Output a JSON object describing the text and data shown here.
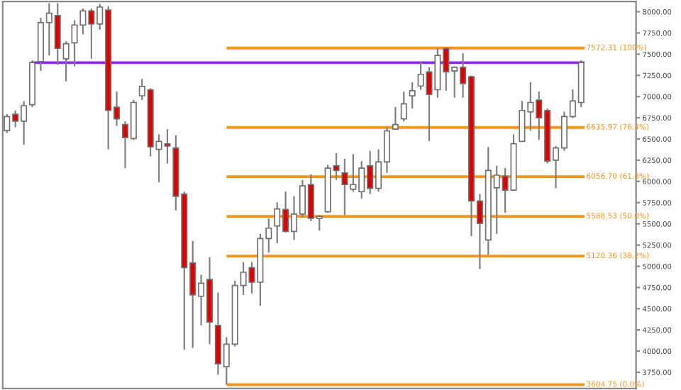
{
  "chart_data": {
    "type": "candlestick",
    "categories": [
      null,
      null,
      null,
      null,
      null,
      null,
      null,
      null,
      null,
      null,
      null,
      null,
      null,
      null,
      null,
      null,
      null,
      null,
      null,
      null,
      null,
      null,
      null,
      null,
      null,
      null,
      null,
      null,
      null,
      null,
      null,
      null,
      null,
      null,
      null,
      null,
      null,
      null,
      null,
      null,
      null,
      null,
      null,
      null,
      null,
      null,
      null,
      null,
      null,
      null,
      null,
      null,
      null,
      null,
      null,
      null,
      null,
      null,
      null,
      null,
      null,
      null,
      null,
      null,
      null,
      null,
      null,
      null,
      null,
      null,
      null,
      null,
      null,
      null,
      null
    ],
    "ohlc": [
      [
        6599,
        6793,
        6572,
        6765
      ],
      [
        6793,
        6837,
        6638,
        6710
      ],
      [
        6710,
        6948,
        6433,
        6893
      ],
      [
        6904,
        7429,
        6876,
        7402
      ],
      [
        7413,
        7927,
        7302,
        7872
      ],
      [
        7872,
        8100,
        7485,
        7983
      ],
      [
        7955,
        8100,
        7374,
        7568
      ],
      [
        7446,
        7651,
        7180,
        7623
      ],
      [
        7634,
        7900,
        7357,
        7844
      ],
      [
        7844,
        8038,
        7734,
        8010
      ],
      [
        8010,
        8038,
        7446,
        7855
      ],
      [
        7855,
        8093,
        7789,
        8055
      ],
      [
        8021,
        8066,
        6378,
        6837
      ],
      [
        6876,
        7059,
        6655,
        6738
      ],
      [
        6671,
        6710,
        6157,
        6516
      ],
      [
        6505,
        6959,
        6489,
        6931
      ],
      [
        7010,
        7208,
        6959,
        7120
      ],
      [
        7081,
        7097,
        6295,
        6406
      ],
      [
        6378,
        6555,
        5991,
        6472
      ],
      [
        6444,
        6616,
        6212,
        6417
      ],
      [
        6395,
        6544,
        5659,
        5825
      ],
      [
        5852,
        5880,
        4016,
        4984
      ],
      [
        5039,
        5299,
        4038,
        4663
      ],
      [
        4647,
        4901,
        4303,
        4801
      ],
      [
        4845,
        5106,
        4082,
        4342
      ],
      [
        4303,
        4690,
        3722,
        3849
      ],
      [
        3816,
        4165,
        3605,
        4082
      ],
      [
        4082,
        4829,
        4054,
        4774
      ],
      [
        4774,
        5050,
        4663,
        4929
      ],
      [
        4984,
        5050,
        4680,
        4812
      ],
      [
        4812,
        5382,
        4536,
        5327
      ],
      [
        5327,
        5565,
        5161,
        5449
      ],
      [
        5476,
        5753,
        5271,
        5676
      ],
      [
        5670,
        5880,
        5399,
        5410
      ],
      [
        5410,
        5825,
        5310,
        5615
      ],
      [
        5615,
        6018,
        5576,
        5947
      ],
      [
        5963,
        6085,
        5532,
        5565
      ],
      [
        5565,
        5603,
        5421,
        5587
      ],
      [
        5642,
        6195,
        5631,
        6157
      ],
      [
        6184,
        6334,
        6018,
        6129
      ],
      [
        6101,
        6268,
        5603,
        5963
      ],
      [
        5908,
        6323,
        5880,
        5963
      ],
      [
        5880,
        6240,
        5797,
        6157
      ],
      [
        6184,
        6361,
        5852,
        5919
      ],
      [
        5919,
        6378,
        5880,
        6229
      ],
      [
        6229,
        6638,
        6101,
        6594
      ],
      [
        6616,
        6876,
        6616,
        6671
      ],
      [
        6738,
        7059,
        6710,
        6915
      ],
      [
        7009,
        7169,
        6859,
        7070
      ],
      [
        7125,
        7413,
        7081,
        7263
      ],
      [
        7291,
        7346,
        6478,
        7025
      ],
      [
        7081,
        7568,
        6987,
        7485
      ],
      [
        7568,
        7572,
        7070,
        7291
      ],
      [
        7302,
        7357,
        6987,
        7346
      ],
      [
        7346,
        7512,
        6987,
        7153
      ],
      [
        7236,
        7247,
        5354,
        5769
      ],
      [
        5769,
        5852,
        4967,
        5504
      ],
      [
        5310,
        6406,
        5133,
        6129
      ],
      [
        5924,
        6184,
        5382,
        6074
      ],
      [
        6063,
        6157,
        5631,
        5897
      ],
      [
        5897,
        6555,
        5897,
        6444
      ],
      [
        6472,
        6948,
        6472,
        6837
      ],
      [
        6820,
        7169,
        6599,
        6931
      ],
      [
        6959,
        7059,
        6489,
        6749
      ],
      [
        6837,
        6859,
        6212,
        6240
      ],
      [
        6251,
        6417,
        5919,
        6395
      ],
      [
        6395,
        6821,
        6361,
        6765
      ],
      [
        6765,
        7086,
        6749,
        6948
      ],
      [
        6931,
        7429,
        6876,
        7402
      ],
      null,
      null,
      null,
      null,
      null,
      null
    ],
    "colors": [
      "#ffffff",
      "#e00000",
      "#ffffff",
      "#ffffff",
      "#ffffff",
      "#ffffff",
      "#e00000",
      "#ffffff",
      "#ffffff",
      "#ffffff",
      "#e00000",
      "#ffffff",
      "#e00000",
      "#e00000",
      "#e00000",
      "#ffffff",
      "#ffffff",
      "#e00000",
      "#ffffff",
      "#e00000",
      "#e00000",
      "#e00000",
      "#e00000",
      "#ffffff",
      "#e00000",
      "#e00000",
      "#ffffff",
      "#ffffff",
      "#ffffff",
      "#e00000",
      "#ffffff",
      "#ffffff",
      "#ffffff",
      "#e00000",
      "#ffffff",
      "#ffffff",
      "#e00000",
      "#ffffff",
      "#ffffff",
      "#e00000",
      "#e00000",
      "#ffffff",
      "#ffffff",
      "#e00000",
      "#ffffff",
      "#ffffff",
      "#ffffff",
      "#ffffff",
      "#ffffff",
      "#ffffff",
      "#e00000",
      "#ffffff",
      "#e00000",
      "#ffffff",
      "#e00000",
      "#e00000",
      "#e00000",
      "#ffffff",
      "#ffffff",
      "#e00000",
      "#ffffff",
      "#ffffff",
      "#ffffff",
      "#e00000",
      "#e00000",
      "#ffffff",
      "#ffffff",
      "#ffffff",
      "#ffffff",
      null,
      null,
      null,
      null,
      null,
      null
    ],
    "ylim": [
      3560,
      8120
    ],
    "yticks": [
      {
        "value": 3750,
        "label": "3750.00"
      },
      {
        "value": 4000,
        "label": "4000.00"
      },
      {
        "value": 4250,
        "label": "4250.00"
      },
      {
        "value": 4500,
        "label": "4500.00"
      },
      {
        "value": 4750,
        "label": "4750.00"
      },
      {
        "value": 5000,
        "label": "5000.00"
      },
      {
        "value": 5250,
        "label": "5250.00"
      },
      {
        "value": 5500,
        "label": "5500.00"
      },
      {
        "value": 5750,
        "label": "5750.00"
      },
      {
        "value": 6000,
        "label": "6000.00"
      },
      {
        "value": 6250,
        "label": "6250.00"
      },
      {
        "value": 6500,
        "label": "6500.00"
      },
      {
        "value": 6750,
        "label": "6750.00"
      },
      {
        "value": 7000,
        "label": "7000.00"
      },
      {
        "value": 7250,
        "label": "7250.00"
      },
      {
        "value": 7500,
        "label": "7500.00"
      },
      {
        "value": 7750,
        "label": "7750.00"
      },
      {
        "value": 8000,
        "label": "8000.00"
      }
    ],
    "tick_labels": "y",
    "ref_lines": [
      {
        "axis": "y",
        "value": 7400,
        "color": "#8a2be2"
      },
      {
        "axis": "y",
        "value": 7572.31,
        "label": "7572.31 (100%)",
        "color": "#f7941d"
      },
      {
        "axis": "y",
        "value": 6635.97,
        "label": "6635.97 (76.4%)",
        "color": "#f7941d"
      },
      {
        "axis": "y",
        "value": 6056.7,
        "label": "6056.70 (61.8%)",
        "color": "#f7941d"
      },
      {
        "axis": "y",
        "value": 5588.53,
        "label": "5588.53 (50.0%)",
        "color": "#f7941d"
      },
      {
        "axis": "y",
        "value": 5120.36,
        "label": "5120.36 (38.2%)",
        "color": "#f7941d"
      },
      {
        "axis": "y",
        "value": 3604.75,
        "label": "3604.75 (0.0%)",
        "color": "#f7941d"
      }
    ]
  }
}
